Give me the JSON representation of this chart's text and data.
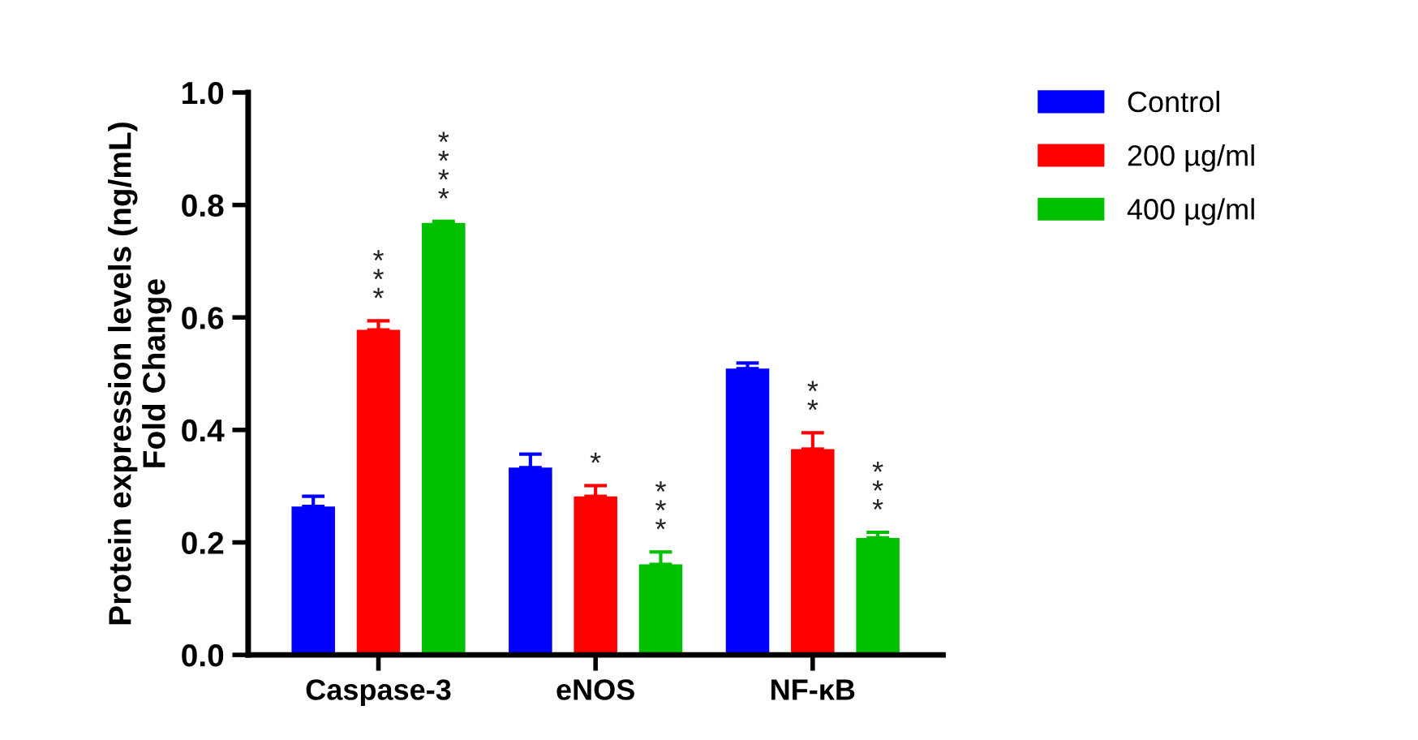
{
  "chart_data": {
    "type": "bar",
    "ylabel": "Protein expression levels (ng/mL)\nFold Change",
    "categories": [
      "Caspase-3",
      "eNOS",
      "NF-κB"
    ],
    "series": [
      {
        "name": "Control",
        "color": "#0000ff",
        "values": [
          0.264,
          0.333,
          0.509
        ],
        "errors": [
          0.018,
          0.024,
          0.01
        ]
      },
      {
        "name": "200 µg/ml",
        "color": "#ff0000",
        "values": [
          0.578,
          0.282,
          0.366
        ],
        "errors": [
          0.016,
          0.019,
          0.029
        ],
        "value_labels": [
          "***",
          "*",
          "**"
        ]
      },
      {
        "name": "400 µg/ml",
        "color": "#00c000",
        "values": [
          0.768,
          0.161,
          0.208
        ],
        "errors": [
          0.003,
          0.022,
          0.01
        ],
        "value_labels": [
          "****",
          "***",
          "***"
        ]
      }
    ],
    "ylim": [
      0,
      1.0
    ],
    "yticks": [
      {
        "value": 0,
        "label": "0.0"
      },
      {
        "value": 0.2,
        "label": "0.2"
      },
      {
        "value": 0.4,
        "label": "0.4"
      },
      {
        "value": 0.6,
        "label": "0.6"
      },
      {
        "value": 0.8,
        "label": "0.8"
      },
      {
        "value": 1.0,
        "label": "1.0"
      }
    ],
    "grid": false,
    "legend": "top right"
  }
}
